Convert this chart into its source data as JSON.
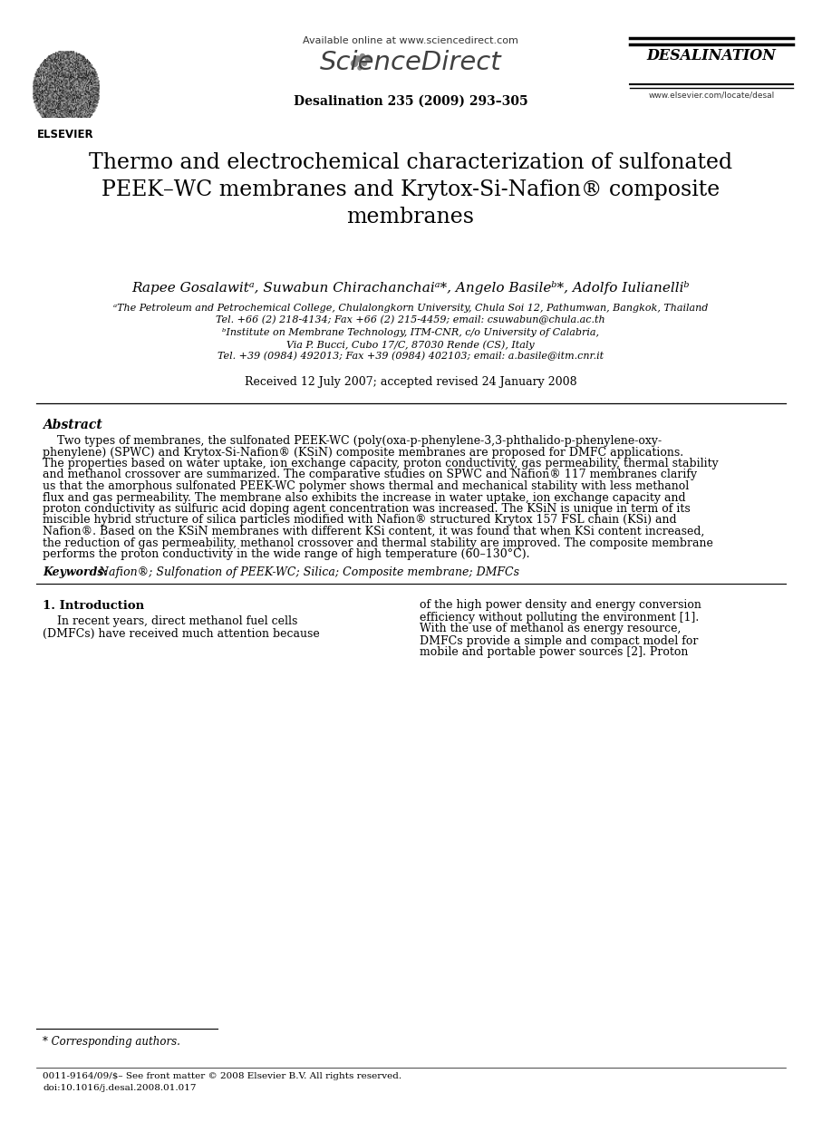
{
  "bg_color": "#ffffff",
  "available_online": "Available online at www.sciencedirect.com",
  "journal_name": "ScienceDirect",
  "journal_issue": "Desalination 235 (2009) 293–305",
  "journal_brand": "DESALINATION",
  "journal_url": "www.elsevier.com/locate/desal",
  "title_line1": "Thermo and electrochemical characterization of sulfonated",
  "title_line2": "PEEK–WC membranes and Krytox-Si-Nafion® composite",
  "title_line3": "membranes",
  "authors": "Rapee Gosalawitᵃ, Suwabun Chirachanchaiᵃ*, Angelo Basileᵇ*, Adolfo Iulianelliᵇ",
  "affil1": "ᵃThe Petroleum and Petrochemical College, Chulalongkorn University, Chula Soi 12, Pathumwan, Bangkok, Thailand",
  "affil1b": "Tel. +66 (2) 218-4134; Fax +66 (2) 215-4459; email: csuwabun@chula.ac.th",
  "affil2": "ᵇInstitute on Membrane Technology, ITM-CNR, c/o University of Calabria,",
  "affil2b": "Via P. Bucci, Cubo 17/C, 87030 Rende (CS), Italy",
  "affil2c": "Tel. +39 (0984) 492013; Fax +39 (0984) 402103; email: a.basile@itm.cnr.it",
  "received": "Received 12 July 2007; accepted revised 24 January 2008",
  "abstract_title": "Abstract",
  "abstract_lines": [
    "    Two types of membranes, the sulfonated PEEK-WC (poly(oxa-p-phenylene-3,3-phthalido-p-phenylene-oxy-",
    "phenylene) (SPWC) and Krytox-Si-Nafion® (KSiN) composite membranes are proposed for DMFC applications.",
    "The properties based on water uptake, ion exchange capacity, proton conductivity, gas permeability, thermal stability",
    "and methanol crossover are summarized. The comparative studies on SPWC and Nafion® 117 membranes clarify",
    "us that the amorphous sulfonated PEEK-WC polymer shows thermal and mechanical stability with less methanol",
    "flux and gas permeability. The membrane also exhibits the increase in water uptake, ion exchange capacity and",
    "proton conductivity as sulfuric acid doping agent concentration was increased. The KSiN is unique in term of its",
    "miscible hybrid structure of silica particles modified with Nafion® structured Krytox 157 FSL chain (KSi) and",
    "Nafion®. Based on the KSiN membranes with different KSi content, it was found that when KSi content increased,",
    "the reduction of gas permeability, methanol crossover and thermal stability are improved. The composite membrane",
    "performs the proton conductivity in the wide range of high temperature (60–130°C)."
  ],
  "keywords_label": "Keywords:",
  "keywords_rest": " Nafion®; Sulfonation of PEEK-WC; Silica; Composite membrane; DMFCs",
  "intro_title": "1. Introduction",
  "intro_col1_lines": [
    "    In recent years, direct methanol fuel cells",
    "(DMFCs) have received much attention because"
  ],
  "intro_col2_lines": [
    "of the high power density and energy conversion",
    "efficiency without polluting the environment [1].",
    "With the use of methanol as energy resource,",
    "DMFCs provide a simple and compact model for",
    "mobile and portable power sources [2]. Proton"
  ],
  "footnote": "* Corresponding authors.",
  "footer1": "0011-9164/09/$– See front matter © 2008 Elsevier B.V. All rights reserved.",
  "footer2": "doi:10.1016/j.desal.2008.01.017"
}
